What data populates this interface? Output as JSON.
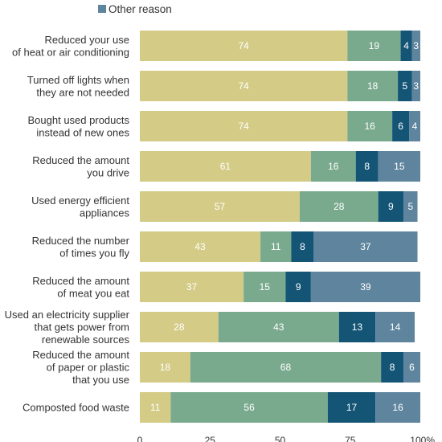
{
  "chart_data": {
    "type": "bar",
    "orientation": "horizontal",
    "stacked": true,
    "categories": [
      [
        "Reduced your use",
        "of heat or air conditioning"
      ],
      [
        "Turned off lights when",
        "they are not needed"
      ],
      [
        "Bought used products",
        "instead of new ones"
      ],
      [
        "Reduced the amount",
        "you drive"
      ],
      [
        "Used energy efficient",
        "appliances"
      ],
      [
        "Reduced the number",
        "of times you fly"
      ],
      [
        "Reduced the amount",
        "of meat you eat"
      ],
      [
        "Used an electricity supplier",
        "that gets power from",
        "renewable sources"
      ],
      [
        "Reduced the amount",
        "of paper or plastic",
        "that you use"
      ],
      [
        "Composted food waste"
      ]
    ],
    "series": [
      {
        "values": [
          74,
          74,
          74,
          61,
          57,
          43,
          37,
          28,
          18,
          11
        ],
        "color": "#d3cb86",
        "label_color": "#ffffff"
      },
      {
        "values": [
          19,
          18,
          16,
          16,
          28,
          11,
          15,
          43,
          68,
          56
        ],
        "color": "#79aa8e",
        "label_color": "#ffffff"
      },
      {
        "values": [
          4,
          5,
          6,
          8,
          9,
          8,
          9,
          13,
          8,
          17
        ],
        "color": "#145575",
        "label_color": "#ffffff"
      },
      {
        "name": "Other reason",
        "values": [
          3,
          3,
          4,
          15,
          5,
          37,
          39,
          14,
          6,
          16
        ],
        "color": "#5f859e",
        "label_color": "#ffffff"
      }
    ],
    "xlim": [
      0,
      100
    ],
    "xticks": [
      "0",
      "25",
      "50",
      "75",
      "100%"
    ],
    "legend": {
      "position": "top"
    }
  }
}
